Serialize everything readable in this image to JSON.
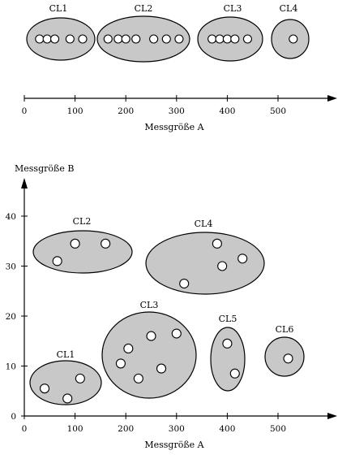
{
  "colors": {
    "cluster_fill": "#c8c8c8",
    "point_fill": "#ffffff",
    "ink": "#000000"
  },
  "top": {
    "xlabel": "Messgröße A",
    "ticks": [
      0,
      100,
      200,
      300,
      400,
      500
    ],
    "clusters": [
      {
        "name": "CL1",
        "points": [
          30,
          45,
          60,
          90,
          115
        ]
      },
      {
        "name": "CL2",
        "points": [
          165,
          185,
          200,
          220,
          255,
          280,
          305
        ]
      },
      {
        "name": "CL3",
        "points": [
          370,
          385,
          400,
          415,
          440
        ]
      },
      {
        "name": "CL4",
        "points": [
          530
        ]
      }
    ]
  },
  "bottom": {
    "xlabel": "Messgröße A",
    "ylabel": "Messgröße B",
    "xticks": [
      0,
      100,
      200,
      300,
      400,
      500
    ],
    "yticks": [
      0,
      10,
      20,
      30,
      40
    ],
    "clusters": [
      {
        "name": "CL1",
        "points": [
          [
            40,
            5.5
          ],
          [
            85,
            3.5
          ],
          [
            110,
            7.5
          ]
        ]
      },
      {
        "name": "CL2",
        "points": [
          [
            65,
            31
          ],
          [
            100,
            34.5
          ],
          [
            160,
            34.5
          ]
        ]
      },
      {
        "name": "CL3",
        "points": [
          [
            190,
            10.5
          ],
          [
            205,
            13.5
          ],
          [
            225,
            7.5
          ],
          [
            250,
            16
          ],
          [
            270,
            9.5
          ],
          [
            300,
            16.5
          ]
        ]
      },
      {
        "name": "CL4",
        "points": [
          [
            315,
            26.5
          ],
          [
            380,
            34.5
          ],
          [
            390,
            30
          ],
          [
            430,
            31.5
          ]
        ]
      },
      {
        "name": "CL5",
        "points": [
          [
            400,
            14.5
          ],
          [
            415,
            8.5
          ]
        ]
      },
      {
        "name": "CL6",
        "points": [
          [
            520,
            11.5
          ]
        ]
      }
    ]
  }
}
